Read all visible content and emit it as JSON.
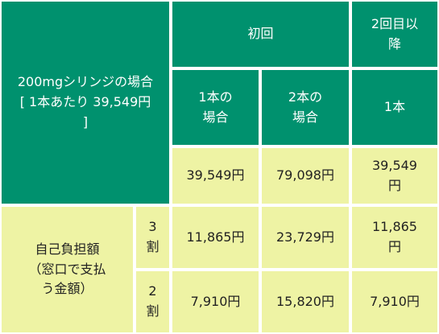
{
  "colors": {
    "header_green": "#00916e",
    "value_yellow": "#eef3a4",
    "border": "#ffffff"
  },
  "table": {
    "corner": {
      "line1": "200mgシリンジの場合",
      "line2": "[ 1本あたり 39,549円",
      "line3": "]"
    },
    "first_time": "初回",
    "second_onward": "2回目以\n降",
    "col_one": "1本の\n場合",
    "col_two": "2本の\n場合",
    "col_onward": "1本",
    "row_price": [
      "39,549円",
      "79,098円",
      "39,549\n円"
    ],
    "copay_label": "自己負担額\n（窓口で支払\nう金額）",
    "rows": [
      {
        "rate": "3\n割",
        "values": [
          "11,865円",
          "23,729円",
          "11,865\n円"
        ]
      },
      {
        "rate": "2\n割",
        "values": [
          "7,910円",
          "15,820円",
          "7,910円"
        ]
      }
    ]
  }
}
